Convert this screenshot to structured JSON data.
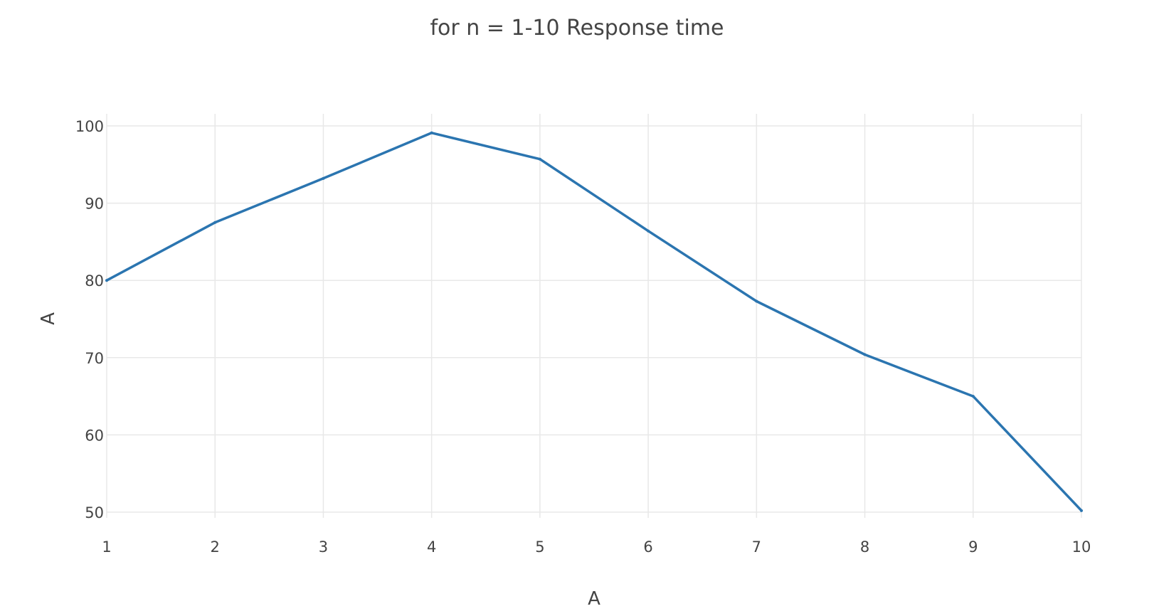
{
  "chart_data": {
    "type": "line",
    "title": "for n = 1-10 Response time",
    "xlabel": "A",
    "ylabel": "A",
    "xlim": [
      1,
      10
    ],
    "ylim": [
      50,
      102
    ],
    "x_ticks": [
      1,
      2,
      3,
      4,
      5,
      6,
      7,
      8,
      9,
      10
    ],
    "y_ticks": [
      50,
      60,
      70,
      80,
      90,
      100
    ],
    "grid": true,
    "legend": "none",
    "series": [
      {
        "color": "#2b75b0",
        "x": [
          1,
          2,
          3,
          4,
          5,
          6,
          7,
          8,
          9,
          10
        ],
        "y": [
          80,
          87.5,
          93.2,
          99.1,
          95.7,
          86.4,
          77.3,
          70.4,
          65.0,
          50.2
        ]
      }
    ]
  }
}
